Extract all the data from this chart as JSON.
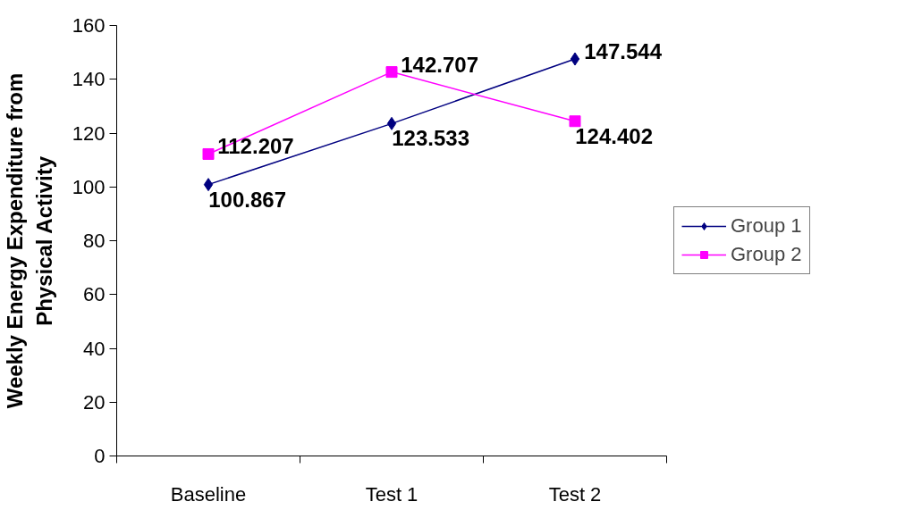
{
  "chart_data": {
    "type": "line",
    "ylabel": "Weekly Energy Expenditure from Physical Activity",
    "categories": [
      "Baseline",
      "Test 1",
      "Test 2"
    ],
    "series": [
      {
        "name": "Group 1",
        "color": "#000080",
        "marker": "diamond",
        "values": [
          100.867,
          123.533,
          147.544
        ]
      },
      {
        "name": "Group 2",
        "color": "#ff00ff",
        "marker": "square",
        "values": [
          112.207,
          142.707,
          124.402
        ]
      }
    ],
    "ylim": [
      0,
      160
    ],
    "yticks": [
      0,
      20,
      40,
      60,
      80,
      100,
      120,
      140,
      160
    ],
    "grid": false,
    "legend": "right",
    "data_labels": true,
    "line_style": "solid"
  }
}
